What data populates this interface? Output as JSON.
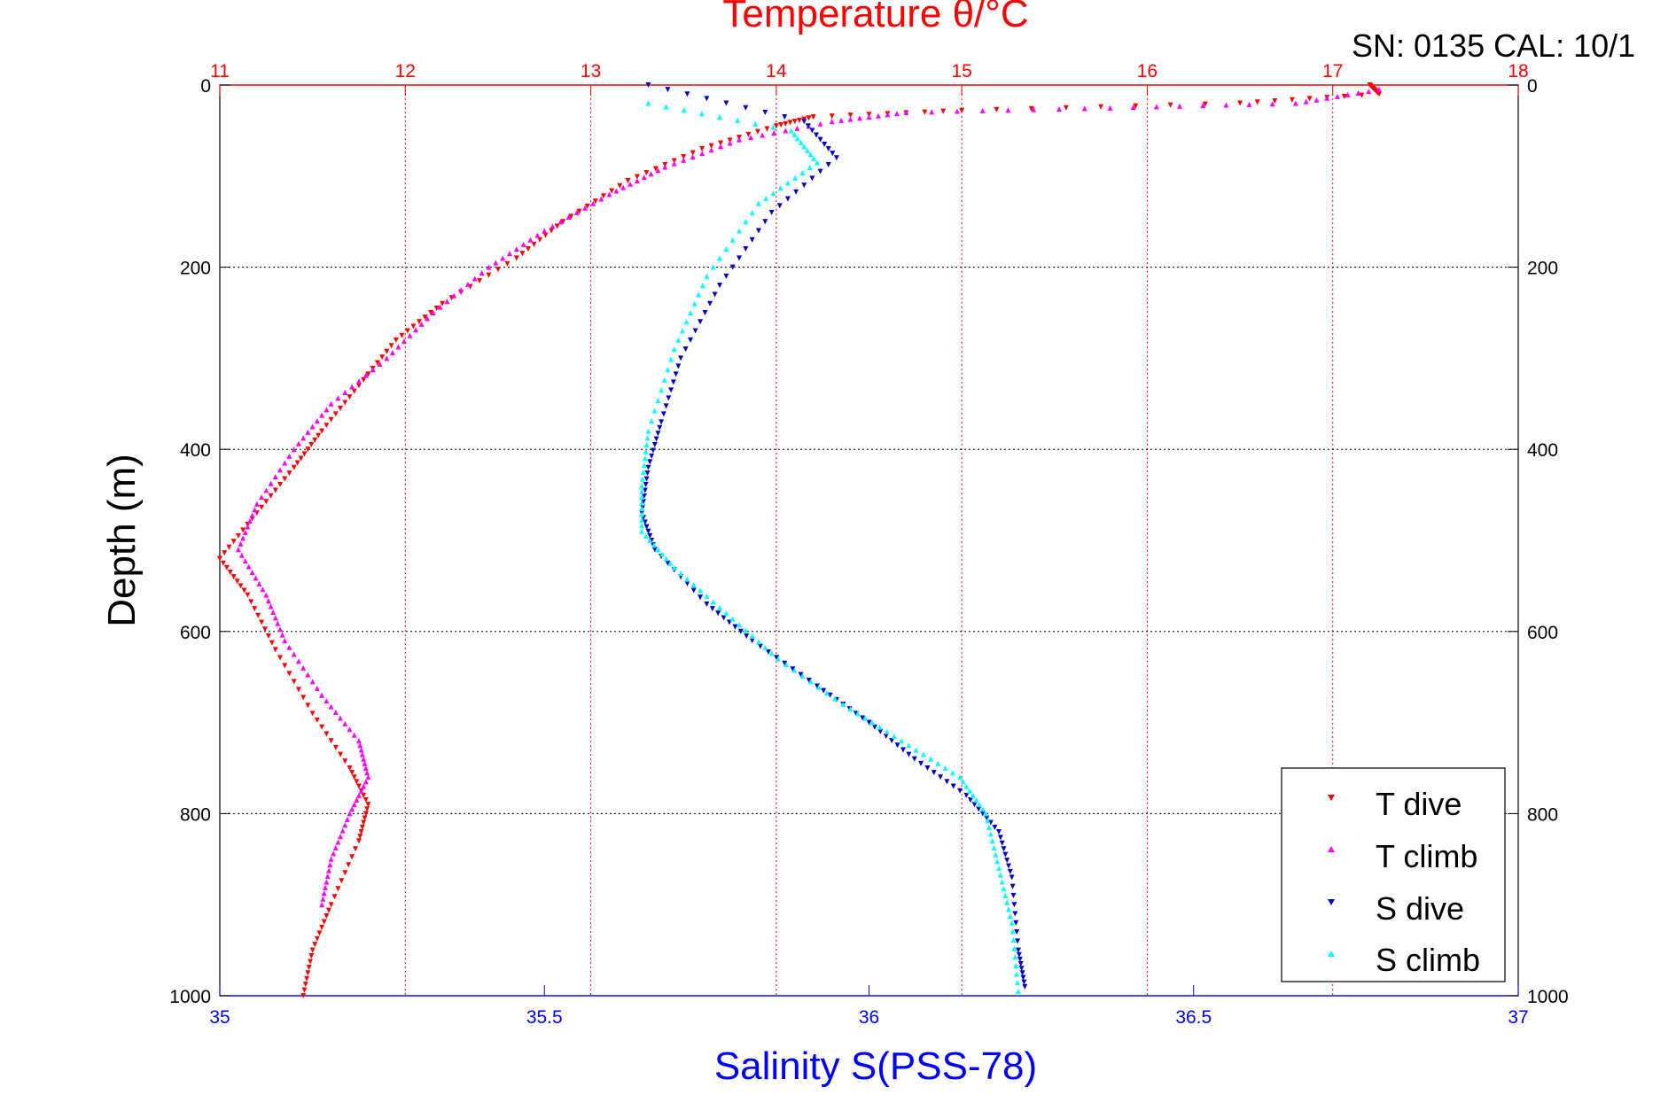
{
  "chart_data": {
    "type": "scatter",
    "title": "Temperature θ/°C",
    "header_text": "SN: 0135  CAL: 10/1",
    "xlabel_bottom": "Salinity S(PSS-78)",
    "xlabel_top": "Temperature θ/°C",
    "ylabel": "Depth (m)",
    "x_bottom_ticks": [
      "35",
      "35.5",
      "36",
      "36.5",
      "37"
    ],
    "x_top_ticks": [
      "11",
      "12",
      "13",
      "14",
      "15",
      "16",
      "17",
      "18"
    ],
    "y_ticks_left": [
      "0",
      "200",
      "400",
      "600",
      "800",
      "1000"
    ],
    "y_ticks_right": [
      "0",
      "200",
      "400",
      "600",
      "800",
      "1000"
    ],
    "x_bottom_range": [
      35,
      37
    ],
    "x_top_range": [
      11,
      18
    ],
    "y_range": [
      0,
      1000
    ],
    "y_reversed": true,
    "grid": true,
    "legend_position": "bottom-right",
    "colors": {
      "temperature_axis": "#ff0000",
      "salinity_axis": "#0000ff",
      "t_dive": "#ff0000",
      "t_climb": "#ff00ff",
      "s_dive": "#0000cc",
      "s_climb": "#00ffff"
    },
    "series": [
      {
        "name": "T dive",
        "axis": "top",
        "marker": "triangle-down",
        "color": "#ff0000",
        "points": [
          [
            17.2,
            0
          ],
          [
            17.25,
            10
          ],
          [
            16.5,
            20
          ],
          [
            15.0,
            28
          ],
          [
            14.2,
            35
          ],
          [
            14.0,
            45
          ],
          [
            13.6,
            70
          ],
          [
            13.2,
            105
          ],
          [
            12.85,
            150
          ],
          [
            12.6,
            190
          ],
          [
            12.2,
            240
          ],
          [
            11.95,
            280
          ],
          [
            11.75,
            330
          ],
          [
            11.55,
            380
          ],
          [
            11.4,
            420
          ],
          [
            11.2,
            470
          ],
          [
            11.0,
            520
          ],
          [
            11.15,
            560
          ],
          [
            11.3,
            620
          ],
          [
            11.5,
            690
          ],
          [
            11.7,
            750
          ],
          [
            11.8,
            790
          ],
          [
            11.75,
            830
          ],
          [
            11.6,
            900
          ],
          [
            11.5,
            950
          ],
          [
            11.45,
            1000
          ]
        ]
      },
      {
        "name": "T climb",
        "axis": "top",
        "marker": "triangle-up",
        "color": "#ff00ff",
        "points": [
          [
            17.25,
            5
          ],
          [
            16.8,
            20
          ],
          [
            15.8,
            25
          ],
          [
            14.7,
            30
          ],
          [
            14.3,
            40
          ],
          [
            13.8,
            60
          ],
          [
            13.4,
            90
          ],
          [
            13.1,
            120
          ],
          [
            12.75,
            160
          ],
          [
            12.45,
            200
          ],
          [
            12.15,
            250
          ],
          [
            11.9,
            300
          ],
          [
            11.6,
            350
          ],
          [
            11.4,
            400
          ],
          [
            11.2,
            460
          ],
          [
            11.1,
            510
          ],
          [
            11.25,
            560
          ],
          [
            11.35,
            610
          ],
          [
            11.55,
            670
          ],
          [
            11.75,
            720
          ],
          [
            11.8,
            760
          ],
          [
            11.7,
            800
          ],
          [
            11.6,
            850
          ],
          [
            11.55,
            900
          ]
        ]
      },
      {
        "name": "S dive",
        "axis": "bottom",
        "marker": "triangle-down",
        "color": "#0000cc",
        "points": [
          [
            35.66,
            0
          ],
          [
            35.9,
            40
          ],
          [
            35.95,
            80
          ],
          [
            35.85,
            140
          ],
          [
            35.77,
            220
          ],
          [
            35.71,
            300
          ],
          [
            35.68,
            370
          ],
          [
            35.66,
            420
          ],
          [
            35.65,
            470
          ],
          [
            35.67,
            510
          ],
          [
            35.75,
            570
          ],
          [
            35.82,
            610
          ],
          [
            35.92,
            660
          ],
          [
            36.0,
            700
          ],
          [
            36.07,
            740
          ],
          [
            36.15,
            780
          ],
          [
            36.2,
            820
          ],
          [
            36.22,
            870
          ],
          [
            36.23,
            950
          ],
          [
            36.24,
            990
          ]
        ]
      },
      {
        "name": "S climb",
        "axis": "bottom",
        "marker": "triangle-up",
        "color": "#00ffff",
        "points": [
          [
            35.66,
            20
          ],
          [
            35.88,
            50
          ],
          [
            35.92,
            85
          ],
          [
            35.83,
            130
          ],
          [
            35.75,
            210
          ],
          [
            35.7,
            290
          ],
          [
            35.66,
            380
          ],
          [
            35.65,
            440
          ],
          [
            35.65,
            490
          ],
          [
            35.7,
            530
          ],
          [
            35.78,
            580
          ],
          [
            35.86,
            630
          ],
          [
            35.96,
            680
          ],
          [
            36.05,
            720
          ],
          [
            36.14,
            760
          ],
          [
            36.18,
            800
          ],
          [
            36.2,
            860
          ],
          [
            36.22,
            920
          ],
          [
            36.23,
            995
          ]
        ]
      }
    ]
  }
}
